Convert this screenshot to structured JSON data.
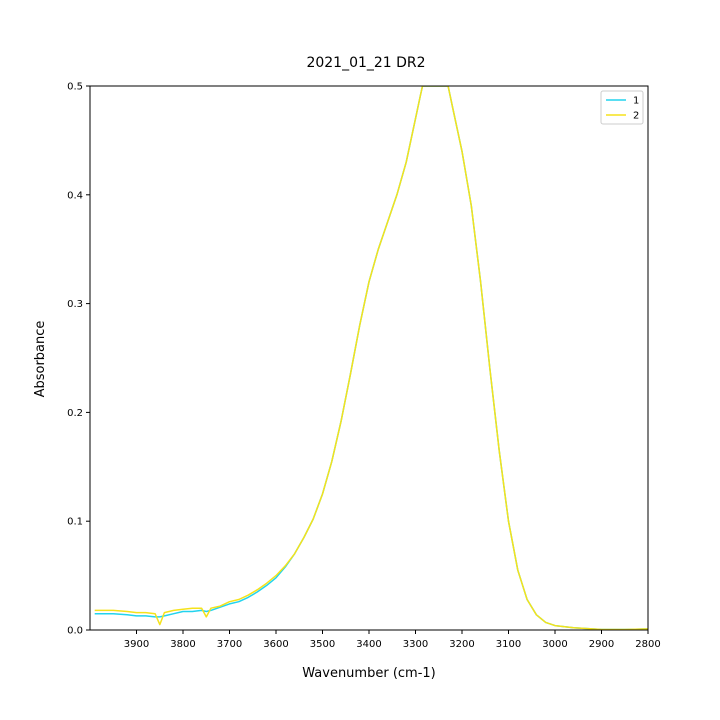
{
  "chart_data": {
    "type": "line",
    "title": "2021_01_21 DR2",
    "xlabel": "Wavenumber (cm-1)",
    "ylabel": "Absorbance",
    "xlim": [
      4000,
      2800
    ],
    "ylim": [
      0,
      0.5
    ],
    "x_reversed": true,
    "grid": false,
    "legend_position": "top-right",
    "xticks": [
      3900,
      3800,
      3700,
      3600,
      3500,
      3400,
      3300,
      3200,
      3100,
      3000,
      2900,
      2800
    ],
    "yticks": [
      0.0,
      0.1,
      0.2,
      0.3,
      0.4,
      0.5
    ],
    "series": [
      {
        "name": "1",
        "color": "#22d3ee",
        "x": [
          3990,
          3950,
          3920,
          3900,
          3880,
          3860,
          3850,
          3840,
          3820,
          3800,
          3780,
          3760,
          3750,
          3740,
          3720,
          3700,
          3680,
          3660,
          3640,
          3620,
          3600,
          3580,
          3560,
          3540,
          3520,
          3500,
          3480,
          3460,
          3440,
          3420,
          3400,
          3380,
          3360,
          3340,
          3320,
          3300,
          3290,
          3285,
          3230,
          3220,
          3200,
          3180,
          3160,
          3140,
          3120,
          3100,
          3080,
          3060,
          3040,
          3020,
          3000,
          2960,
          2920,
          2900,
          2850,
          2800
        ],
        "y": [
          0.015,
          0.015,
          0.014,
          0.013,
          0.013,
          0.012,
          0.012,
          0.013,
          0.015,
          0.017,
          0.017,
          0.018,
          0.017,
          0.018,
          0.021,
          0.024,
          0.026,
          0.03,
          0.035,
          0.041,
          0.048,
          0.058,
          0.07,
          0.085,
          0.102,
          0.125,
          0.155,
          0.192,
          0.235,
          0.28,
          0.32,
          0.35,
          0.375,
          0.4,
          0.43,
          0.47,
          0.49,
          0.5,
          0.5,
          0.48,
          0.44,
          0.39,
          0.32,
          0.24,
          0.165,
          0.1,
          0.055,
          0.028,
          0.014,
          0.007,
          0.004,
          0.002,
          0.001,
          0.0005,
          0.0005,
          0.001
        ]
      },
      {
        "name": "2",
        "color": "#f5e21b",
        "x": [
          3990,
          3950,
          3920,
          3900,
          3880,
          3860,
          3850,
          3840,
          3820,
          3800,
          3780,
          3760,
          3750,
          3740,
          3720,
          3700,
          3680,
          3660,
          3640,
          3620,
          3600,
          3580,
          3560,
          3540,
          3520,
          3500,
          3480,
          3460,
          3440,
          3420,
          3400,
          3380,
          3360,
          3340,
          3320,
          3300,
          3290,
          3285,
          3230,
          3220,
          3200,
          3180,
          3160,
          3140,
          3120,
          3100,
          3080,
          3060,
          3040,
          3020,
          3000,
          2960,
          2920,
          2900,
          2850,
          2800
        ],
        "y": [
          0.018,
          0.018,
          0.017,
          0.016,
          0.016,
          0.015,
          0.005,
          0.016,
          0.018,
          0.019,
          0.02,
          0.02,
          0.012,
          0.02,
          0.022,
          0.026,
          0.028,
          0.032,
          0.037,
          0.043,
          0.05,
          0.059,
          0.07,
          0.085,
          0.102,
          0.125,
          0.155,
          0.192,
          0.235,
          0.28,
          0.32,
          0.35,
          0.375,
          0.4,
          0.43,
          0.47,
          0.49,
          0.5,
          0.5,
          0.48,
          0.44,
          0.39,
          0.32,
          0.24,
          0.165,
          0.1,
          0.055,
          0.028,
          0.014,
          0.007,
          0.004,
          0.002,
          0.001,
          0.0005,
          0.0005,
          0.001
        ]
      }
    ]
  }
}
